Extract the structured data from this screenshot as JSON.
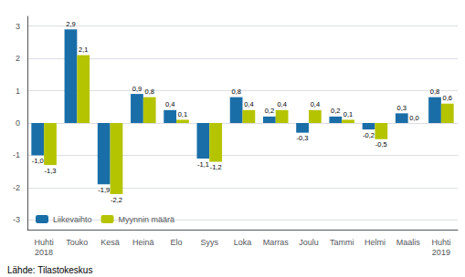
{
  "chart_data": {
    "type": "bar",
    "categories": [
      "Huhti\n2018",
      "Touko",
      "Kesä",
      "Heinä",
      "Elo",
      "Syys",
      "Loka",
      "Marras",
      "Joulu",
      "Tammi",
      "Helmi",
      "Maalis",
      "Huhti\n2019"
    ],
    "series": [
      {
        "name": "Liikevaihto",
        "color": "#1a6ea8",
        "values": [
          -1.0,
          2.9,
          -1.9,
          0.9,
          0.4,
          -1.1,
          0.8,
          0.2,
          -0.3,
          0.2,
          -0.2,
          0.3,
          0.8
        ],
        "value_labels": [
          "-1,0",
          "2,9",
          "-1,9",
          "0,9",
          "0,4",
          "-1,1",
          "0,8",
          "0,2",
          "-0,3",
          "0,2",
          "-0,2",
          "0,3",
          "0,8"
        ]
      },
      {
        "name": "Myynnin määrä",
        "color": "#b5c400",
        "values": [
          -1.3,
          2.1,
          -2.2,
          0.8,
          0.1,
          -1.2,
          0.4,
          0.4,
          0.4,
          0.1,
          -0.5,
          0.0,
          0.6
        ],
        "value_labels": [
          "-1,3",
          "2,1",
          "-2,2",
          "0,8",
          "0,1",
          "-1,2",
          "0,4",
          "0,4",
          "0,4",
          "0,1",
          "-0,5",
          "0,0",
          "0,6"
        ]
      }
    ],
    "ylim": [
      -3.3,
      3.3
    ],
    "yticks": [
      -3,
      -2,
      -1,
      0,
      1,
      2,
      3
    ],
    "grid": true,
    "legend": "lower left",
    "data_labels": true,
    "annotations": [
      "Lähde: Tilastokeskus"
    ]
  }
}
